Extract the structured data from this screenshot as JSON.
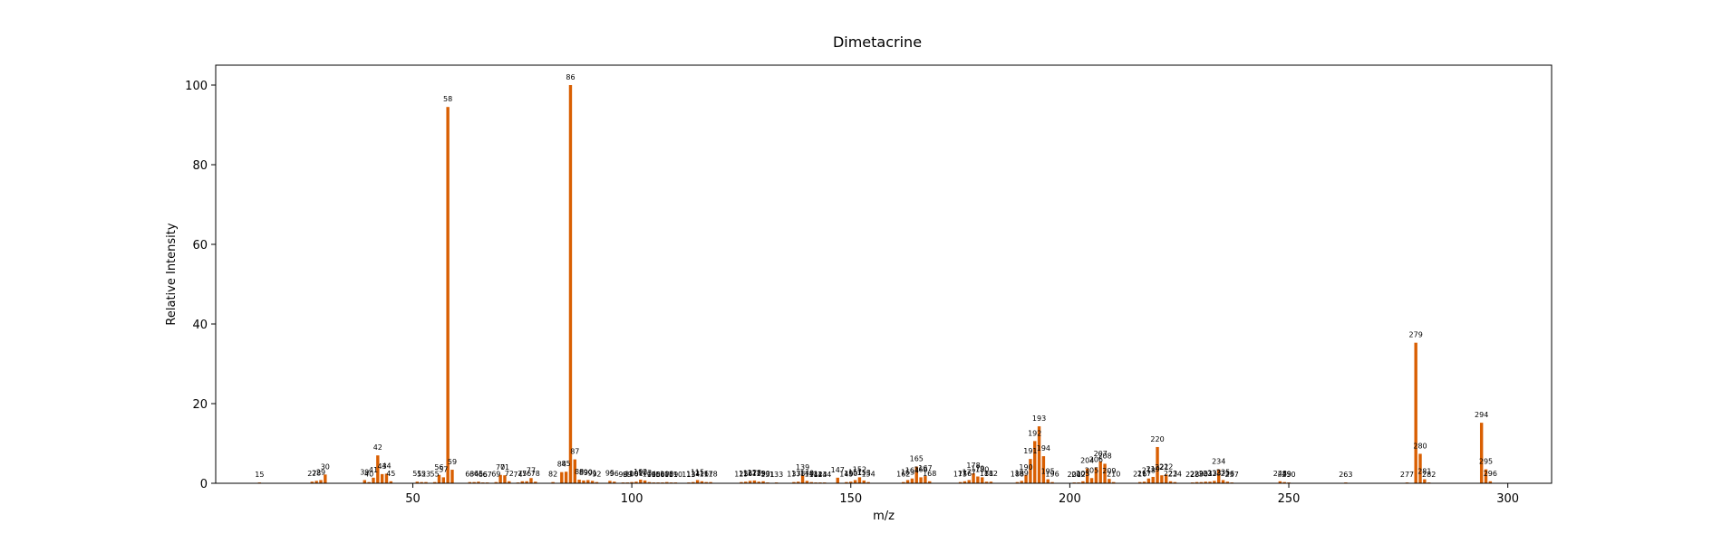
{
  "chart_data": {
    "type": "bar",
    "title": "Dimetacrine",
    "xlabel": "m/z",
    "ylabel": "Relative Intensity",
    "xlim": [
      5,
      310
    ],
    "ylim": [
      0,
      105
    ],
    "bar_color": "#d95f02",
    "grid": false,
    "x_ticks": [
      50,
      100,
      150,
      200,
      250,
      300
    ],
    "y_ticks": [
      0,
      20,
      40,
      60,
      80,
      100
    ],
    "peaks": [
      {
        "mz": 15,
        "intensity": 0.2,
        "label": "15"
      },
      {
        "mz": 27,
        "intensity": 0.4,
        "label": "27"
      },
      {
        "mz": 28,
        "intensity": 0.6,
        "label": "28"
      },
      {
        "mz": 29,
        "intensity": 0.8,
        "label": "29"
      },
      {
        "mz": 30,
        "intensity": 2.2,
        "label": "30"
      },
      {
        "mz": 39,
        "intensity": 0.8,
        "label": "39"
      },
      {
        "mz": 40,
        "intensity": 0.3,
        "label": "40"
      },
      {
        "mz": 41,
        "intensity": 1.4,
        "label": "41"
      },
      {
        "mz": 42,
        "intensity": 7.0,
        "label": "42"
      },
      {
        "mz": 43,
        "intensity": 2.3,
        "label": "43"
      },
      {
        "mz": 44,
        "intensity": 2.4,
        "label": "44"
      },
      {
        "mz": 45,
        "intensity": 0.5,
        "label": "45"
      },
      {
        "mz": 51,
        "intensity": 0.4,
        "label": "51"
      },
      {
        "mz": 52,
        "intensity": 0.3,
        "label": "52"
      },
      {
        "mz": 53,
        "intensity": 0.3,
        "label": "53"
      },
      {
        "mz": 55,
        "intensity": 0.3,
        "label": "55"
      },
      {
        "mz": 56,
        "intensity": 2.1,
        "label": "56"
      },
      {
        "mz": 57,
        "intensity": 1.5,
        "label": "57"
      },
      {
        "mz": 58,
        "intensity": 94.5,
        "label": "58"
      },
      {
        "mz": 59,
        "intensity": 3.4,
        "label": "59"
      },
      {
        "mz": 63,
        "intensity": 0.3,
        "label": "63"
      },
      {
        "mz": 64,
        "intensity": 0.3,
        "label": "64"
      },
      {
        "mz": 65,
        "intensity": 0.4,
        "label": "65"
      },
      {
        "mz": 66,
        "intensity": 0.2,
        "label": "66"
      },
      {
        "mz": 67,
        "intensity": 0.2,
        "label": "67"
      },
      {
        "mz": 69,
        "intensity": 0.3,
        "label": "69"
      },
      {
        "mz": 70,
        "intensity": 2.1,
        "label": "70"
      },
      {
        "mz": 71,
        "intensity": 2.0,
        "label": "71"
      },
      {
        "mz": 72,
        "intensity": 0.5,
        "label": "72"
      },
      {
        "mz": 74,
        "intensity": 0.2,
        "label": "74"
      },
      {
        "mz": 75,
        "intensity": 0.5,
        "label": "75"
      },
      {
        "mz": 76,
        "intensity": 0.5,
        "label": "76"
      },
      {
        "mz": 77,
        "intensity": 1.3,
        "label": "77"
      },
      {
        "mz": 78,
        "intensity": 0.4,
        "label": "78"
      },
      {
        "mz": 82,
        "intensity": 0.3,
        "label": "82"
      },
      {
        "mz": 84,
        "intensity": 2.8,
        "label": "84"
      },
      {
        "mz": 85,
        "intensity": 2.9,
        "label": "85"
      },
      {
        "mz": 86,
        "intensity": 100.0,
        "label": "86"
      },
      {
        "mz": 87,
        "intensity": 6.0,
        "label": "87"
      },
      {
        "mz": 88,
        "intensity": 0.9,
        "label": "88"
      },
      {
        "mz": 89,
        "intensity": 0.7,
        "label": "89"
      },
      {
        "mz": 90,
        "intensity": 0.8,
        "label": "90"
      },
      {
        "mz": 91,
        "intensity": 0.6,
        "label": "91"
      },
      {
        "mz": 92,
        "intensity": 0.3,
        "label": "92"
      },
      {
        "mz": 95,
        "intensity": 0.6,
        "label": "95"
      },
      {
        "mz": 96,
        "intensity": 0.4,
        "label": "96"
      },
      {
        "mz": 98,
        "intensity": 0.2,
        "label": "98"
      },
      {
        "mz": 99,
        "intensity": 0.2,
        "label": "99"
      },
      {
        "mz": 100,
        "intensity": 0.3,
        "label": "100"
      },
      {
        "mz": 101,
        "intensity": 0.4,
        "label": "101"
      },
      {
        "mz": 102,
        "intensity": 0.9,
        "label": "102"
      },
      {
        "mz": 103,
        "intensity": 0.7,
        "label": "103"
      },
      {
        "mz": 104,
        "intensity": 0.3,
        "label": "104"
      },
      {
        "mz": 105,
        "intensity": 0.2,
        "label": "105"
      },
      {
        "mz": 106,
        "intensity": 0.2,
        "label": "106"
      },
      {
        "mz": 107,
        "intensity": 0.2,
        "label": "107"
      },
      {
        "mz": 108,
        "intensity": 0.3,
        "label": "108"
      },
      {
        "mz": 109,
        "intensity": 0.2,
        "label": "109"
      },
      {
        "mz": 110,
        "intensity": 0.2,
        "label": "110"
      },
      {
        "mz": 113,
        "intensity": 0.2,
        "label": "113"
      },
      {
        "mz": 114,
        "intensity": 0.3,
        "label": "114"
      },
      {
        "mz": 115,
        "intensity": 0.8,
        "label": "115"
      },
      {
        "mz": 116,
        "intensity": 0.5,
        "label": "116"
      },
      {
        "mz": 117,
        "intensity": 0.3,
        "label": "117"
      },
      {
        "mz": 118,
        "intensity": 0.3,
        "label": "118"
      },
      {
        "mz": 125,
        "intensity": 0.3,
        "label": "125"
      },
      {
        "mz": 126,
        "intensity": 0.4,
        "label": "126"
      },
      {
        "mz": 127,
        "intensity": 0.6,
        "label": "127"
      },
      {
        "mz": 128,
        "intensity": 0.7,
        "label": "128"
      },
      {
        "mz": 129,
        "intensity": 0.4,
        "label": "129"
      },
      {
        "mz": 130,
        "intensity": 0.5,
        "label": "130"
      },
      {
        "mz": 131,
        "intensity": 0.2,
        "label": "131"
      },
      {
        "mz": 133,
        "intensity": 0.2,
        "label": "133"
      },
      {
        "mz": 137,
        "intensity": 0.3,
        "label": "137"
      },
      {
        "mz": 138,
        "intensity": 0.4,
        "label": "138"
      },
      {
        "mz": 139,
        "intensity": 2.1,
        "label": "139"
      },
      {
        "mz": 140,
        "intensity": 0.6,
        "label": "140"
      },
      {
        "mz": 141,
        "intensity": 0.3,
        "label": "141"
      },
      {
        "mz": 142,
        "intensity": 0.2,
        "label": "142"
      },
      {
        "mz": 143,
        "intensity": 0.2,
        "label": "143"
      },
      {
        "mz": 144,
        "intensity": 0.2,
        "label": "144"
      },
      {
        "mz": 147,
        "intensity": 1.4,
        "label": "147"
      },
      {
        "mz": 149,
        "intensity": 0.3,
        "label": "149"
      },
      {
        "mz": 150,
        "intensity": 0.4,
        "label": "150"
      },
      {
        "mz": 151,
        "intensity": 0.8,
        "label": "151"
      },
      {
        "mz": 152,
        "intensity": 1.5,
        "label": "152"
      },
      {
        "mz": 153,
        "intensity": 0.7,
        "label": "153"
      },
      {
        "mz": 154,
        "intensity": 0.3,
        "label": "154"
      },
      {
        "mz": 162,
        "intensity": 0.3,
        "label": "162"
      },
      {
        "mz": 163,
        "intensity": 0.8,
        "label": "163"
      },
      {
        "mz": 164,
        "intensity": 1.2,
        "label": "164"
      },
      {
        "mz": 165,
        "intensity": 4.2,
        "label": "165"
      },
      {
        "mz": 166,
        "intensity": 1.5,
        "label": "166"
      },
      {
        "mz": 167,
        "intensity": 1.8,
        "label": "167"
      },
      {
        "mz": 168,
        "intensity": 0.5,
        "label": "168"
      },
      {
        "mz": 175,
        "intensity": 0.3,
        "label": "175"
      },
      {
        "mz": 176,
        "intensity": 0.5,
        "label": "176"
      },
      {
        "mz": 177,
        "intensity": 0.8,
        "label": "177"
      },
      {
        "mz": 178,
        "intensity": 2.5,
        "label": "178"
      },
      {
        "mz": 179,
        "intensity": 1.7,
        "label": "179"
      },
      {
        "mz": 180,
        "intensity": 1.5,
        "label": "180"
      },
      {
        "mz": 181,
        "intensity": 0.4,
        "label": "181"
      },
      {
        "mz": 182,
        "intensity": 0.4,
        "label": "182"
      },
      {
        "mz": 188,
        "intensity": 0.3,
        "label": "188"
      },
      {
        "mz": 189,
        "intensity": 0.6,
        "label": "189"
      },
      {
        "mz": 190,
        "intensity": 2.1,
        "label": "190"
      },
      {
        "mz": 191,
        "intensity": 6.1,
        "label": "191"
      },
      {
        "mz": 192,
        "intensity": 10.6,
        "label": "192"
      },
      {
        "mz": 193,
        "intensity": 14.3,
        "label": "193"
      },
      {
        "mz": 194,
        "intensity": 6.8,
        "label": "194"
      },
      {
        "mz": 195,
        "intensity": 1.0,
        "label": "195"
      },
      {
        "mz": 196,
        "intensity": 0.3,
        "label": "196"
      },
      {
        "mz": 201,
        "intensity": 0.2,
        "label": "201"
      },
      {
        "mz": 202,
        "intensity": 0.2,
        "label": "202"
      },
      {
        "mz": 203,
        "intensity": 0.5,
        "label": "203"
      },
      {
        "mz": 204,
        "intensity": 3.7,
        "label": "204"
      },
      {
        "mz": 205,
        "intensity": 1.3,
        "label": "205"
      },
      {
        "mz": 206,
        "intensity": 4.0,
        "label": "206"
      },
      {
        "mz": 207,
        "intensity": 5.5,
        "label": "207"
      },
      {
        "mz": 208,
        "intensity": 4.9,
        "label": "208"
      },
      {
        "mz": 209,
        "intensity": 1.1,
        "label": "209"
      },
      {
        "mz": 210,
        "intensity": 0.3,
        "label": "210"
      },
      {
        "mz": 216,
        "intensity": 0.3,
        "label": "216"
      },
      {
        "mz": 217,
        "intensity": 0.4,
        "label": "217"
      },
      {
        "mz": 218,
        "intensity": 1.2,
        "label": "218"
      },
      {
        "mz": 219,
        "intensity": 1.6,
        "label": "219"
      },
      {
        "mz": 220,
        "intensity": 9.1,
        "label": "220"
      },
      {
        "mz": 221,
        "intensity": 2.0,
        "label": "221"
      },
      {
        "mz": 222,
        "intensity": 2.2,
        "label": "222"
      },
      {
        "mz": 223,
        "intensity": 0.5,
        "label": "223"
      },
      {
        "mz": 224,
        "intensity": 0.3,
        "label": "224"
      },
      {
        "mz": 228,
        "intensity": 0.2,
        "label": "228"
      },
      {
        "mz": 229,
        "intensity": 0.3,
        "label": "229"
      },
      {
        "mz": 230,
        "intensity": 0.3,
        "label": "230"
      },
      {
        "mz": 231,
        "intensity": 0.4,
        "label": "231"
      },
      {
        "mz": 232,
        "intensity": 0.4,
        "label": "232"
      },
      {
        "mz": 233,
        "intensity": 0.6,
        "label": "233"
      },
      {
        "mz": 234,
        "intensity": 3.5,
        "label": "234"
      },
      {
        "mz": 235,
        "intensity": 0.8,
        "label": "235"
      },
      {
        "mz": 236,
        "intensity": 0.4,
        "label": "236"
      },
      {
        "mz": 237,
        "intensity": 0.2,
        "label": "237"
      },
      {
        "mz": 248,
        "intensity": 0.5,
        "label": "248"
      },
      {
        "mz": 249,
        "intensity": 0.3,
        "label": "249"
      },
      {
        "mz": 250,
        "intensity": 0.2,
        "label": "250"
      },
      {
        "mz": 263,
        "intensity": 0.2,
        "label": "263"
      },
      {
        "mz": 277,
        "intensity": 0.2,
        "label": "277"
      },
      {
        "mz": 279,
        "intensity": 35.3,
        "label": "279"
      },
      {
        "mz": 280,
        "intensity": 7.4,
        "label": "280"
      },
      {
        "mz": 281,
        "intensity": 1.0,
        "label": "281"
      },
      {
        "mz": 282,
        "intensity": 0.2,
        "label": "282"
      },
      {
        "mz": 294,
        "intensity": 15.2,
        "label": "294"
      },
      {
        "mz": 295,
        "intensity": 3.5,
        "label": "295"
      },
      {
        "mz": 296,
        "intensity": 0.5,
        "label": "296"
      }
    ]
  }
}
